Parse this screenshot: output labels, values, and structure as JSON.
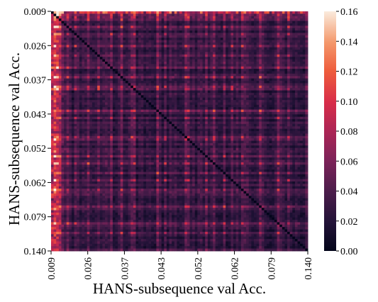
{
  "chart_data": {
    "type": "heatmap",
    "title": "",
    "xlabel": "HANS-subsequence val Acc.",
    "ylabel": "HANS-subsequence val Acc.",
    "x_tick_labels": [
      "0.009",
      "0.026",
      "0.037",
      "0.043",
      "0.052",
      "0.062",
      "0.079",
      "0.140"
    ],
    "y_tick_labels": [
      "0.009",
      "0.026",
      "0.037",
      "0.043",
      "0.052",
      "0.062",
      "0.079",
      "0.140"
    ],
    "grid_size": 100,
    "colormap": "rocket",
    "colorbar": {
      "min": 0.0,
      "max": 0.16,
      "ticks": [
        "0.00",
        "0.02",
        "0.04",
        "0.06",
        "0.08",
        "0.10",
        "0.12",
        "0.14",
        "0.16"
      ]
    },
    "value_summary": "Off-diagonal values mostly between 0.00 and 0.04 (dark), with bright bands up to about 0.16 along specific rows and columns, strongest in the first few columns on the left and along the top row."
  }
}
